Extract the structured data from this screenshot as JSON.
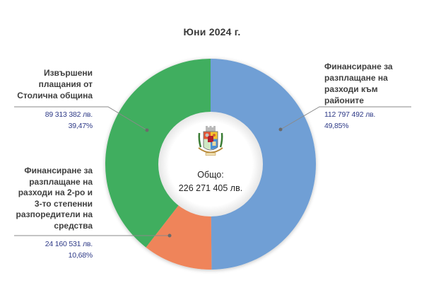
{
  "title": "Юни 2024 г.",
  "center": {
    "label": "Общо:",
    "total": "226 271 405 лв."
  },
  "colors": {
    "blue": "#6f9fd5",
    "orange": "#ef845a",
    "green": "#3fae5e",
    "value_text": "#2e3a87",
    "label_text": "#3f3f3f"
  },
  "segments": [
    {
      "name": "Финансиране за разплащане на разходи към районите",
      "lines": [
        "Финансиране за",
        "разплащане на",
        "разходи към",
        "районите"
      ],
      "amount": "112 797 492 лв.",
      "percent": "49,85%"
    },
    {
      "name": "Финансиране за разплащане на разходи на 2-ро и 3-то степенни разпоредители на средства",
      "lines": [
        "Финансиране за",
        "разплащане на",
        "разходи на 2-ро и",
        "3-то степенни",
        "разпоредители на",
        "средства"
      ],
      "amount": "24 160 531 лв.",
      "percent": "10,68%"
    },
    {
      "name": "Извършени плащания от Столична община",
      "lines": [
        "Извършени",
        "плащания от",
        "Столична община"
      ],
      "amount": "89 313 382 лв.",
      "percent": "39,47%"
    }
  ],
  "chart_data": {
    "type": "pie",
    "subtype": "donut",
    "title": "Юни 2024 г.",
    "categories": [
      "Финансиране за разплащане на разходи към районите",
      "Финансиране за разплащане на разходи на 2-ро и 3-то степенни разпоредители на средства",
      "Извършени плащания от Столична община"
    ],
    "values": [
      112797492,
      24160531,
      89313382
    ],
    "percentages": [
      49.85,
      10.68,
      39.47
    ],
    "value_labels": [
      "112 797 492 лв.",
      "24 160 531 лв.",
      "89 313 382 лв."
    ],
    "percent_labels": [
      "49,85%",
      "10,68%",
      "39,47%"
    ],
    "colors": [
      "#6f9fd5",
      "#ef845a",
      "#3fae5e"
    ],
    "center_text": [
      "Общо:",
      "226 271 405 лв."
    ],
    "total": 226271405,
    "legend": "none (data callouts with leader lines)"
  }
}
